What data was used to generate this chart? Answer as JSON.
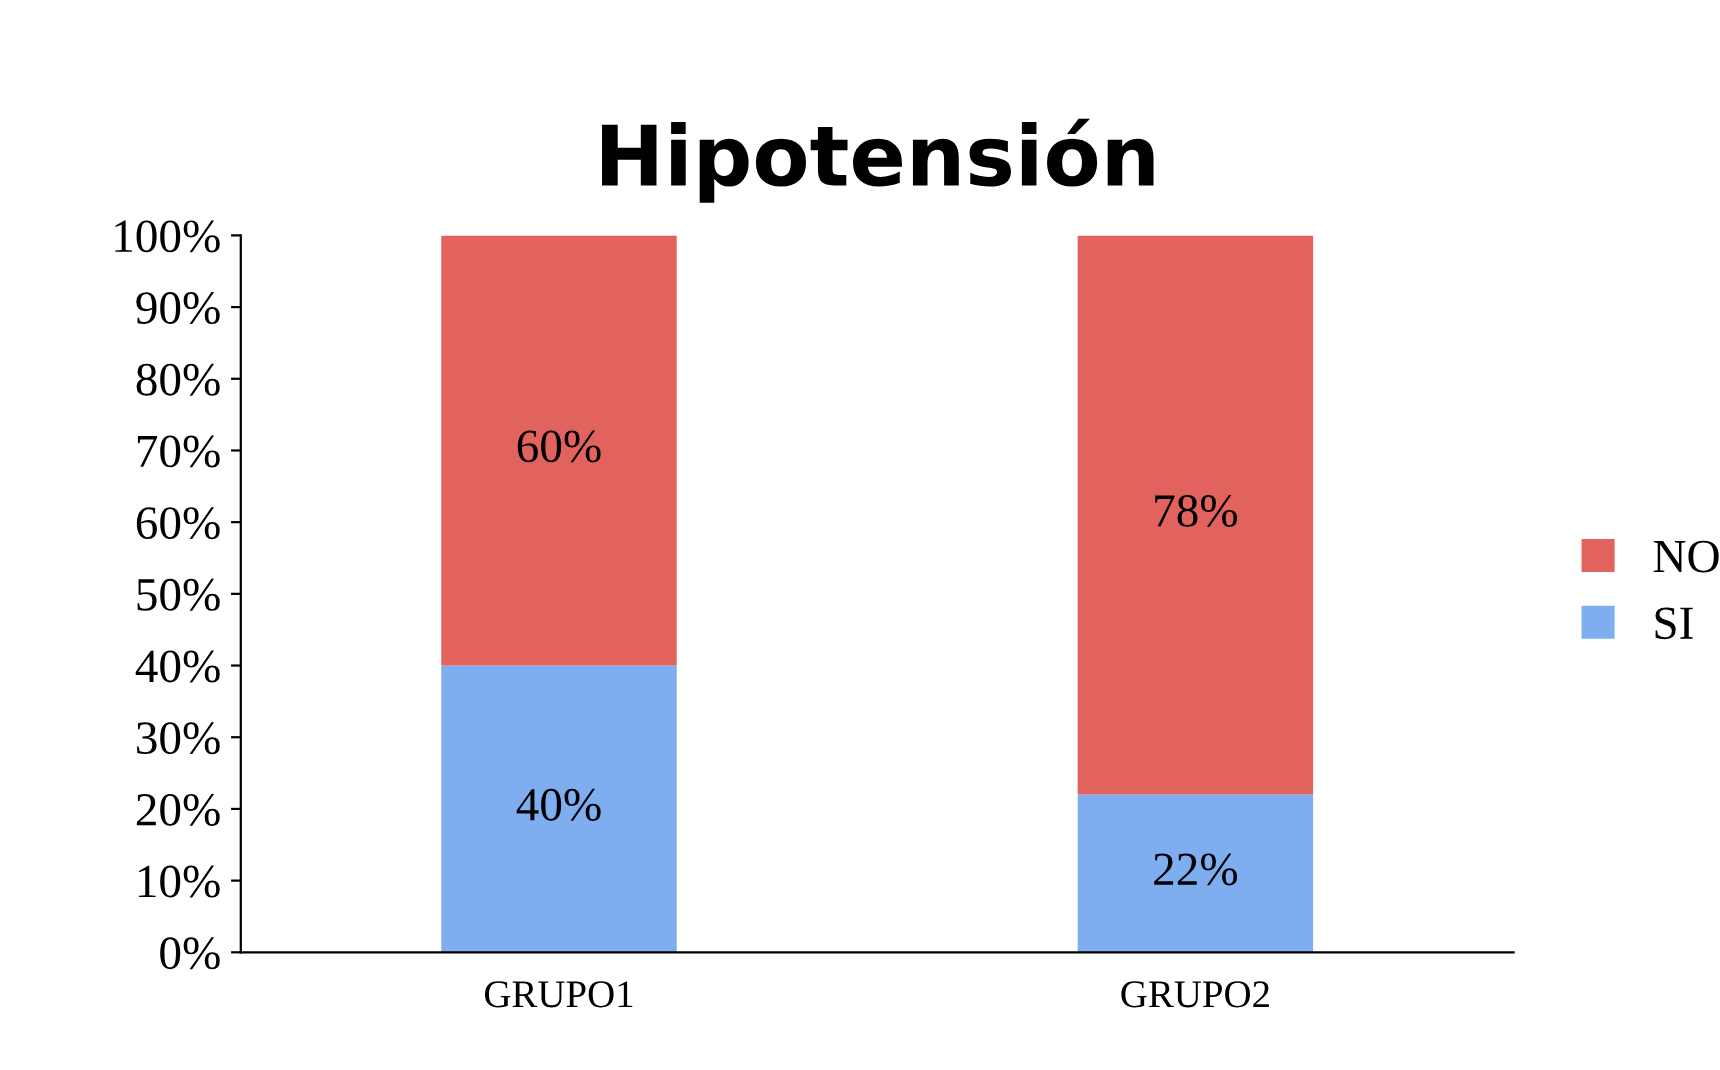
{
  "chart_data": {
    "type": "bar",
    "title": "Hipotensión",
    "stacked": true,
    "categories": [
      "GRUPO1",
      "GRUPO2"
    ],
    "series": [
      {
        "name": "SI",
        "color": "#7eaef0",
        "values": [
          40,
          22
        ],
        "value_labels": [
          "40%",
          "22%"
        ]
      },
      {
        "name": "NO",
        "color": "#e2625e",
        "values": [
          60,
          78
        ],
        "value_labels": [
          "60%",
          "78%"
        ]
      }
    ],
    "ylim": [
      0,
      100
    ],
    "yticks": [
      {
        "value": 0,
        "label": "0%"
      },
      {
        "value": 10,
        "label": "10%"
      },
      {
        "value": 20,
        "label": "20%"
      },
      {
        "value": 30,
        "label": "30%"
      },
      {
        "value": 40,
        "label": "40%"
      },
      {
        "value": 50,
        "label": "50%"
      },
      {
        "value": 60,
        "label": "60%"
      },
      {
        "value": 70,
        "label": "70%"
      },
      {
        "value": 80,
        "label": "80%"
      },
      {
        "value": 90,
        "label": "90%"
      },
      {
        "value": 100,
        "label": "100%"
      }
    ],
    "grid": false,
    "legend": "right"
  }
}
